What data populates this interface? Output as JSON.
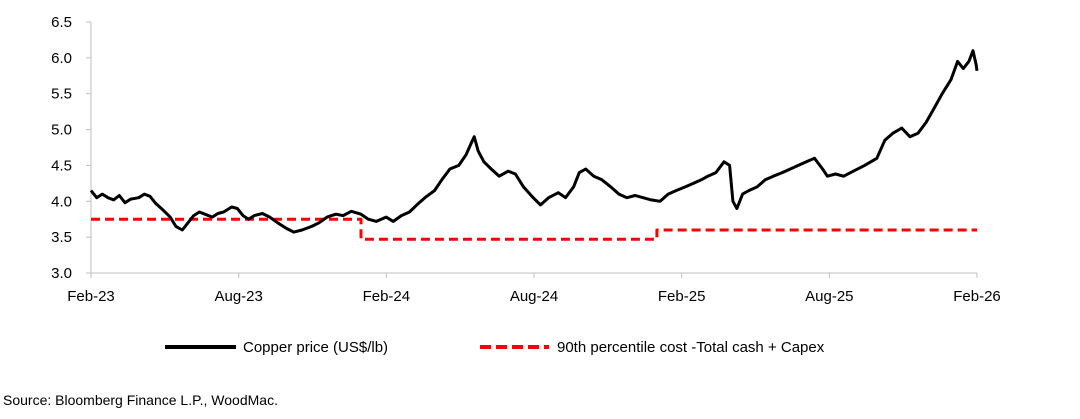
{
  "chart_data": {
    "type": "line",
    "title": "",
    "xlabel": "",
    "ylabel": "",
    "x_ticks": [
      "Feb-23",
      "Aug-23",
      "Feb-24",
      "Aug-24",
      "Feb-25",
      "Aug-25",
      "Feb-26"
    ],
    "xlim": [
      "2023-02",
      "2026-02"
    ],
    "y_ticks": [
      "3.0",
      "3.5",
      "4.0",
      "4.5",
      "5.0",
      "5.5",
      "6.0",
      "6.5"
    ],
    "ylim": [
      3.0,
      6.5
    ],
    "grid": false,
    "legend_position": "bottom",
    "series": [
      {
        "name": "Copper price (US$/lb)",
        "color": "#000000",
        "style": "solid",
        "points": [
          [
            "2023-02-01",
            4.15
          ],
          [
            "2023-02-08",
            4.05
          ],
          [
            "2023-02-15",
            4.1
          ],
          [
            "2023-02-22",
            4.05
          ],
          [
            "2023-03-01",
            4.02
          ],
          [
            "2023-03-08",
            4.08
          ],
          [
            "2023-03-15",
            3.98
          ],
          [
            "2023-03-22",
            4.03
          ],
          [
            "2023-04-01",
            4.05
          ],
          [
            "2023-04-08",
            4.1
          ],
          [
            "2023-04-15",
            4.07
          ],
          [
            "2023-04-22",
            3.97
          ],
          [
            "2023-05-01",
            3.88
          ],
          [
            "2023-05-10",
            3.78
          ],
          [
            "2023-05-17",
            3.65
          ],
          [
            "2023-05-25",
            3.6
          ],
          [
            "2023-06-01",
            3.7
          ],
          [
            "2023-06-08",
            3.8
          ],
          [
            "2023-06-15",
            3.85
          ],
          [
            "2023-06-22",
            3.82
          ],
          [
            "2023-07-01",
            3.78
          ],
          [
            "2023-07-08",
            3.83
          ],
          [
            "2023-07-15",
            3.85
          ],
          [
            "2023-07-25",
            3.92
          ],
          [
            "2023-08-01",
            3.9
          ],
          [
            "2023-08-08",
            3.8
          ],
          [
            "2023-08-15",
            3.75
          ],
          [
            "2023-08-22",
            3.8
          ],
          [
            "2023-09-01",
            3.83
          ],
          [
            "2023-09-10",
            3.78
          ],
          [
            "2023-09-20",
            3.7
          ],
          [
            "2023-10-01",
            3.62
          ],
          [
            "2023-10-10",
            3.57
          ],
          [
            "2023-10-20",
            3.6
          ],
          [
            "2023-11-01",
            3.65
          ],
          [
            "2023-11-10",
            3.7
          ],
          [
            "2023-11-20",
            3.78
          ],
          [
            "2023-12-01",
            3.82
          ],
          [
            "2023-12-10",
            3.8
          ],
          [
            "2023-12-20",
            3.86
          ],
          [
            "2024-01-01",
            3.82
          ],
          [
            "2024-01-10",
            3.75
          ],
          [
            "2024-01-20",
            3.72
          ],
          [
            "2024-02-01",
            3.78
          ],
          [
            "2024-02-10",
            3.72
          ],
          [
            "2024-02-20",
            3.8
          ],
          [
            "2024-03-01",
            3.85
          ],
          [
            "2024-03-10",
            3.95
          ],
          [
            "2024-03-20",
            4.05
          ],
          [
            "2024-04-01",
            4.15
          ],
          [
            "2024-04-10",
            4.3
          ],
          [
            "2024-04-20",
            4.45
          ],
          [
            "2024-05-01",
            4.5
          ],
          [
            "2024-05-10",
            4.65
          ],
          [
            "2024-05-16",
            4.8
          ],
          [
            "2024-05-20",
            4.9
          ],
          [
            "2024-05-25",
            4.7
          ],
          [
            "2024-06-01",
            4.55
          ],
          [
            "2024-06-10",
            4.45
          ],
          [
            "2024-06-20",
            4.35
          ],
          [
            "2024-07-01",
            4.42
          ],
          [
            "2024-07-10",
            4.38
          ],
          [
            "2024-07-20",
            4.2
          ],
          [
            "2024-08-01",
            4.05
          ],
          [
            "2024-08-10",
            3.95
          ],
          [
            "2024-08-20",
            4.05
          ],
          [
            "2024-09-01",
            4.12
          ],
          [
            "2024-09-10",
            4.05
          ],
          [
            "2024-09-20",
            4.2
          ],
          [
            "2024-09-27",
            4.4
          ],
          [
            "2024-10-05",
            4.45
          ],
          [
            "2024-10-15",
            4.35
          ],
          [
            "2024-10-25",
            4.3
          ],
          [
            "2024-11-05",
            4.2
          ],
          [
            "2024-11-15",
            4.1
          ],
          [
            "2024-11-25",
            4.05
          ],
          [
            "2024-12-05",
            4.08
          ],
          [
            "2024-12-15",
            4.05
          ],
          [
            "2024-12-25",
            4.02
          ],
          [
            "2025-01-05",
            4.0
          ],
          [
            "2025-01-15",
            4.1
          ],
          [
            "2025-01-25",
            4.15
          ],
          [
            "2025-02-05",
            4.2
          ],
          [
            "2025-02-15",
            4.25
          ],
          [
            "2025-02-25",
            4.3
          ],
          [
            "2025-03-05",
            4.35
          ],
          [
            "2025-03-15",
            4.4
          ],
          [
            "2025-03-25",
            4.55
          ],
          [
            "2025-04-01",
            4.5
          ],
          [
            "2025-04-05",
            4.0
          ],
          [
            "2025-04-10",
            3.9
          ],
          [
            "2025-04-17",
            4.1
          ],
          [
            "2025-04-25",
            4.15
          ],
          [
            "2025-05-05",
            4.2
          ],
          [
            "2025-05-15",
            4.3
          ],
          [
            "2025-05-25",
            4.35
          ],
          [
            "2025-06-05",
            4.4
          ],
          [
            "2025-06-15",
            4.45
          ],
          [
            "2025-06-25",
            4.5
          ],
          [
            "2025-07-05",
            4.55
          ],
          [
            "2025-07-15",
            4.6
          ],
          [
            "2025-07-25",
            4.45
          ],
          [
            "2025-07-31",
            4.35
          ],
          [
            "2025-08-10",
            4.38
          ],
          [
            "2025-08-20",
            4.35
          ],
          [
            "2025-09-01",
            4.42
          ],
          [
            "2025-09-15",
            4.5
          ],
          [
            "2025-09-30",
            4.6
          ],
          [
            "2025-10-10",
            4.85
          ],
          [
            "2025-10-20",
            4.95
          ],
          [
            "2025-10-31",
            5.02
          ],
          [
            "2025-11-10",
            4.9
          ],
          [
            "2025-11-20",
            4.95
          ],
          [
            "2025-11-30",
            5.1
          ],
          [
            "2025-12-10",
            5.3
          ],
          [
            "2025-12-20",
            5.5
          ],
          [
            "2025-12-31",
            5.7
          ],
          [
            "2026-01-08",
            5.95
          ],
          [
            "2026-01-15",
            5.85
          ],
          [
            "2026-01-22",
            5.95
          ],
          [
            "2026-01-27",
            6.1
          ],
          [
            "2026-01-31",
            5.9
          ],
          [
            "2026-02-01",
            5.82
          ]
        ]
      },
      {
        "name": "90th percentile cost -Total cash + Capex",
        "color": "#ff0000",
        "style": "dashed",
        "points": [
          [
            "2023-02-01",
            3.75
          ],
          [
            "2024-01-01",
            3.75
          ],
          [
            "2024-01-01",
            3.47
          ],
          [
            "2025-01-01",
            3.47
          ],
          [
            "2025-01-01",
            3.6
          ],
          [
            "2026-02-01",
            3.6
          ]
        ]
      }
    ],
    "source_note": "Source: Bloomberg Finance L.P., WoodMac."
  }
}
